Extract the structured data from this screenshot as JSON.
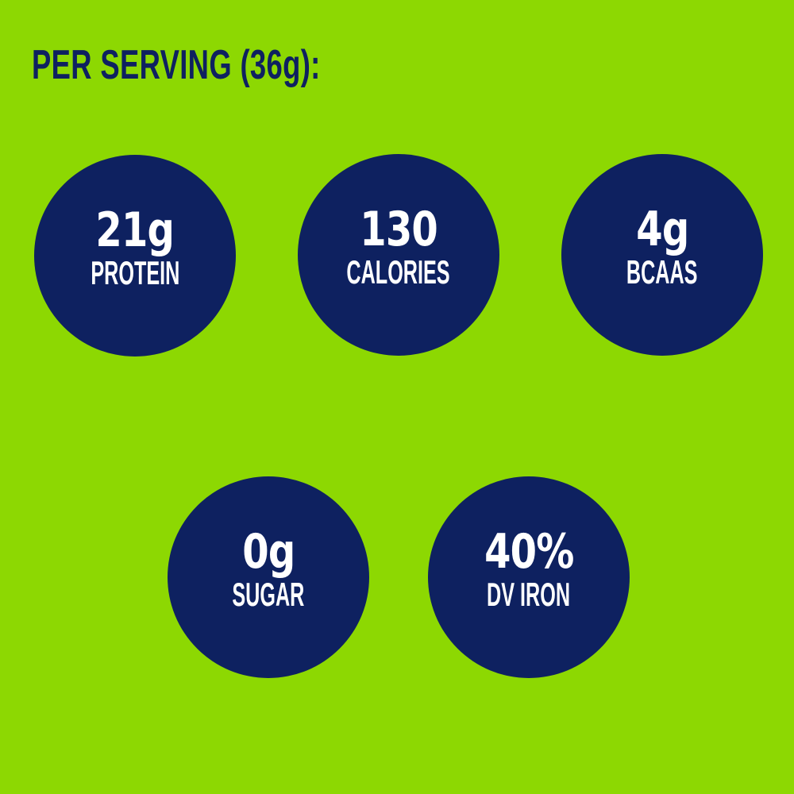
{
  "title": "PER SERVING (36g):",
  "colors": {
    "background": "#8DD802",
    "circle": "#0E2160",
    "title_text": "#0E2160",
    "stat_text": "#FFFFFF"
  },
  "stats": [
    {
      "value": "21g",
      "label": "PROTEIN"
    },
    {
      "value": "130",
      "label": "CALORIES"
    },
    {
      "value": "4g",
      "label": "BCAAS"
    },
    {
      "value": "0g",
      "label": "SUGAR"
    },
    {
      "value": "40%",
      "label": "DV IRON"
    }
  ]
}
